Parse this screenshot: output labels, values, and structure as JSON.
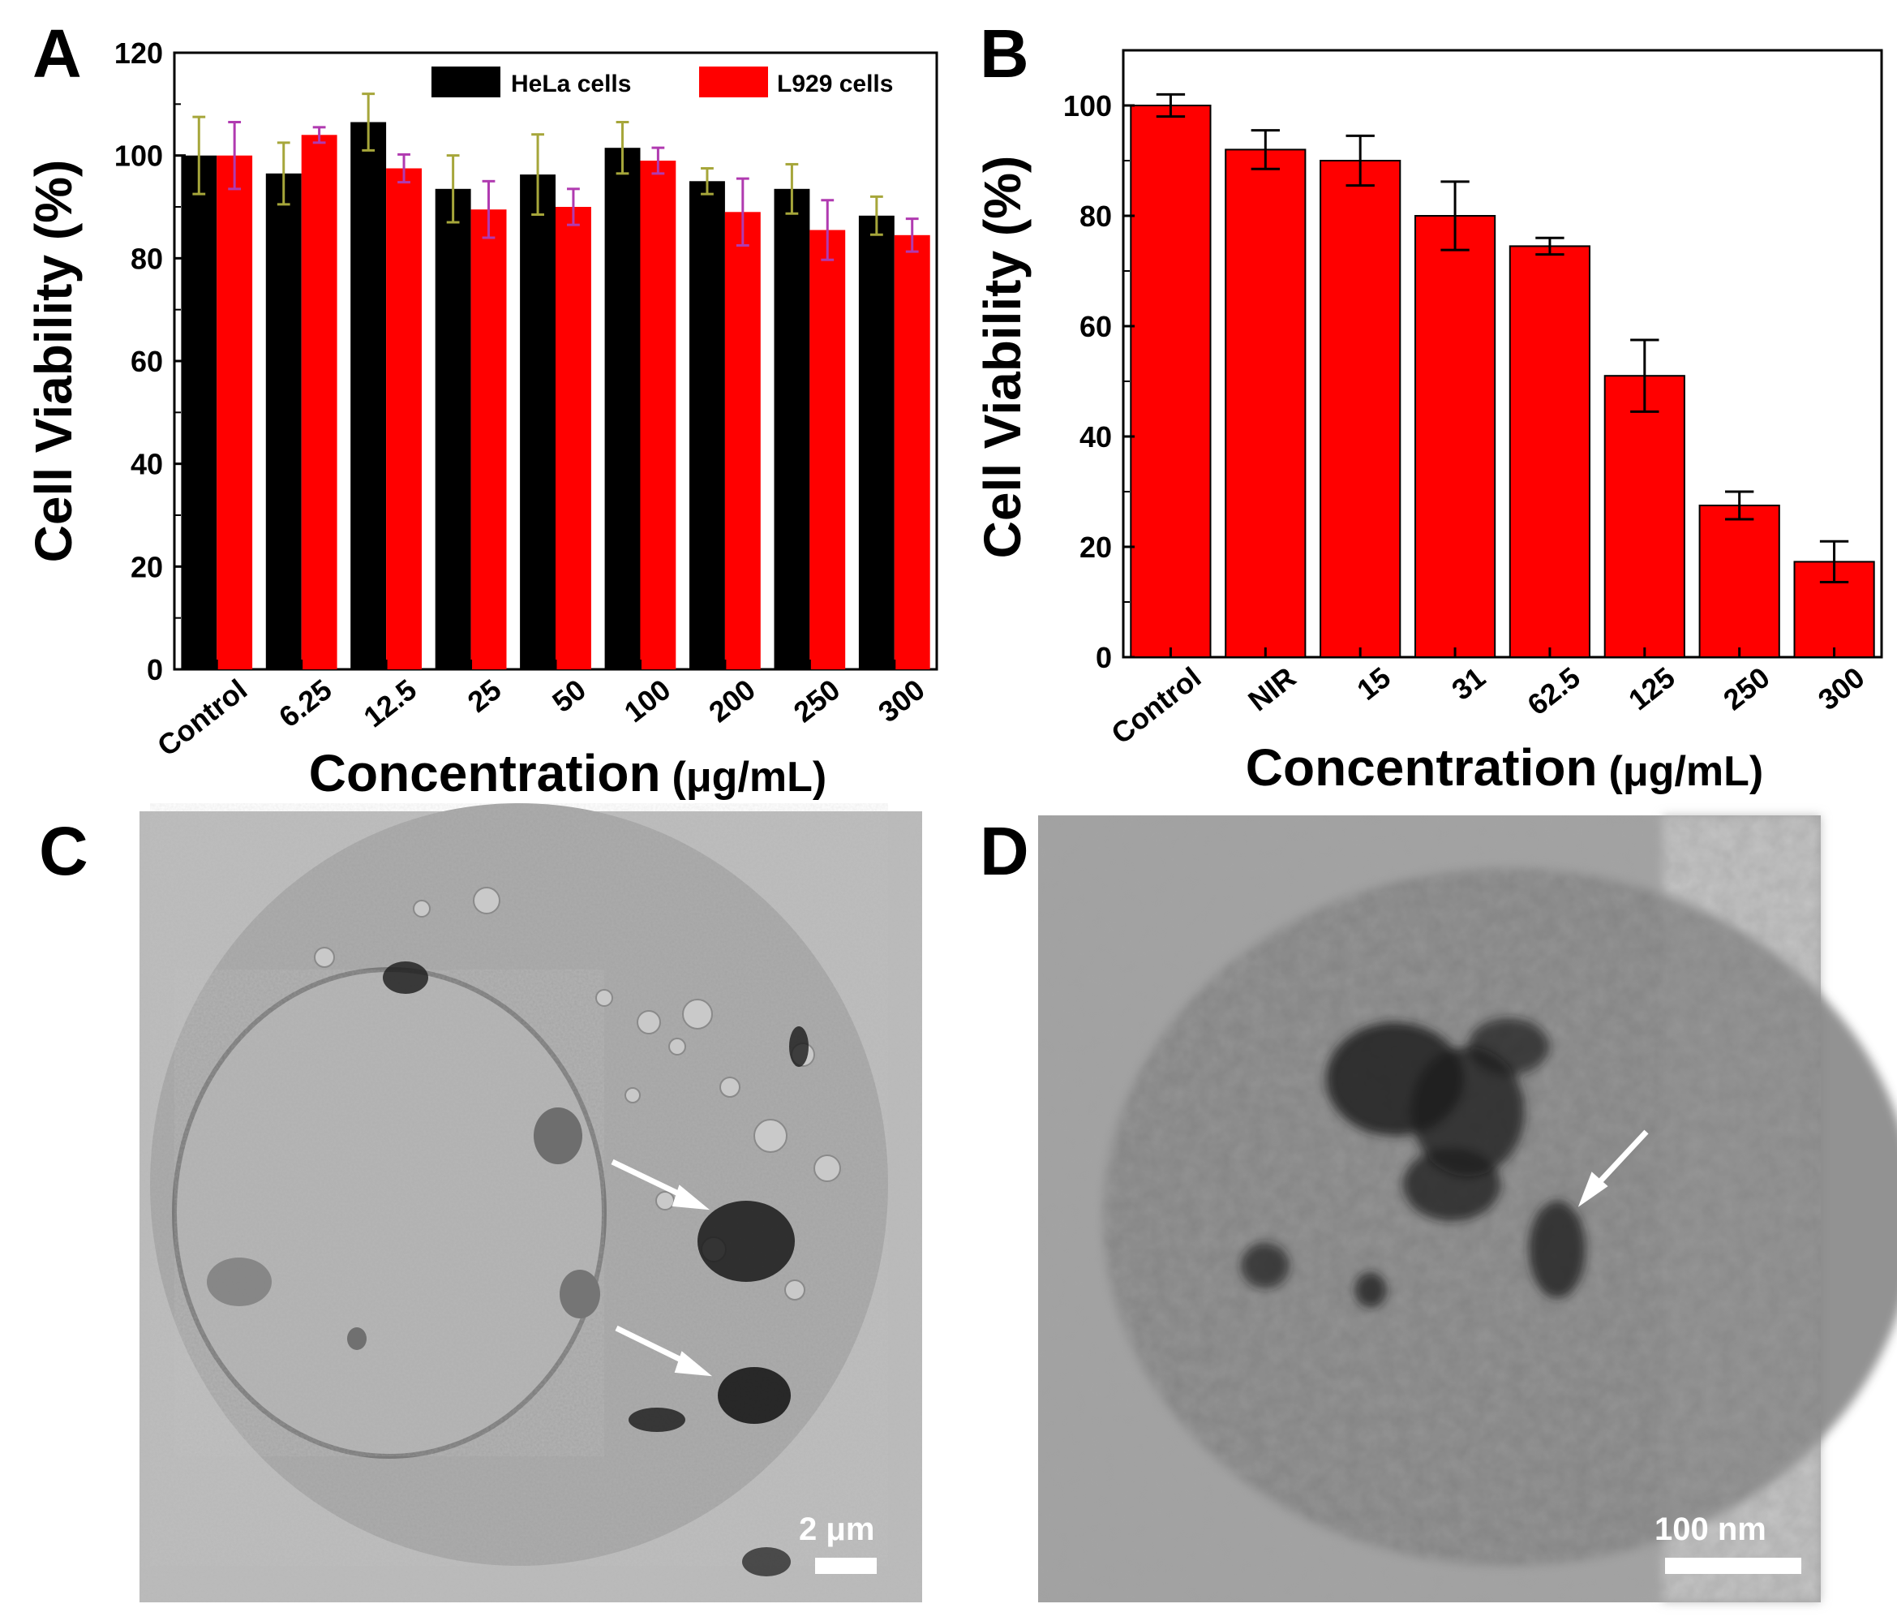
{
  "chart_data": [
    {
      "type": "bar",
      "panel": "A",
      "title": "",
      "xlabel": "Concentration",
      "xlabel_unit": "(μg/mL)",
      "ylabel": "Cell Viability (%)",
      "ylim": [
        0,
        120
      ],
      "yticks": [
        0,
        20,
        40,
        60,
        80,
        100,
        120
      ],
      "categories": [
        "Control",
        "6.25",
        "12.5",
        "25",
        "50",
        "100",
        "200",
        "250",
        "300"
      ],
      "legend_position": "top-right",
      "series": [
        {
          "name": "HeLa cells",
          "color": "#000000",
          "error_color": "#a6a63a",
          "values": [
            100,
            96.5,
            106.5,
            93.5,
            96.3,
            101.5,
            95,
            93.5,
            88.3
          ],
          "errors": [
            7.5,
            6,
            5.5,
            6.5,
            7.8,
            5,
            2.5,
            4.8,
            3.7
          ]
        },
        {
          "name": "L929 cells",
          "color": "#ff0000",
          "error_color": "#b03ab0",
          "values": [
            100,
            104,
            97.5,
            89.5,
            90,
            99,
            89,
            85.5,
            84.5
          ],
          "errors": [
            6.5,
            1.5,
            2.7,
            5.5,
            3.5,
            2.5,
            6.5,
            5.8,
            3.2
          ]
        }
      ]
    },
    {
      "type": "bar",
      "panel": "B",
      "title": "",
      "xlabel": "Concentration",
      "xlabel_unit": "(μg/mL)",
      "ylabel": "Cell Viability (%)",
      "ylim": [
        0,
        110
      ],
      "yticks": [
        0,
        20,
        40,
        60,
        80,
        100
      ],
      "categories": [
        "Control",
        "NIR",
        "15",
        "31",
        "62.5",
        "125",
        "250",
        "300"
      ],
      "series": [
        {
          "color": "#ff0000",
          "error_color": "#000000",
          "values": [
            100,
            92,
            90,
            80,
            74.5,
            51,
            27.5,
            17.3
          ],
          "errors": [
            2,
            3.5,
            4.5,
            6.2,
            1.5,
            6.5,
            2.5,
            3.7
          ]
        }
      ]
    }
  ],
  "panels": {
    "a": "A",
    "b": "B",
    "c": "C",
    "d": "D"
  },
  "micrographs": {
    "c_scale": "2 μm",
    "d_scale": "100 nm"
  }
}
